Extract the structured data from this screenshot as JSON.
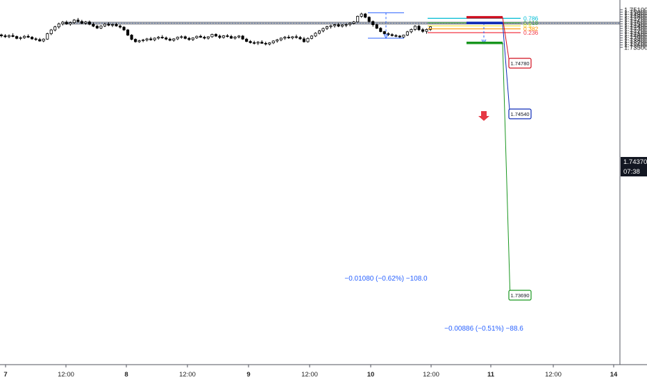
{
  "chart_data": {
    "type": "candlestick",
    "price_axis": {
      "ticks": [
        "1.75100",
        "1.75000",
        "1.74900",
        "1.74800",
        "1.74700",
        "1.74600",
        "1.74500",
        "1.74400",
        "1.74300",
        "1.74200",
        "1.74100",
        "1.74000",
        "1.73900",
        "1.73800",
        "1.73700",
        "1.73600",
        "1.73500"
      ],
      "current_price": "1.74370",
      "countdown": "07:38",
      "ylim": [
        1.7345,
        1.7515
      ]
    },
    "time_axis": {
      "ticks": [
        "7",
        "12:00",
        "8",
        "12:00",
        "9",
        "12:00",
        "10",
        "12:00",
        "11",
        "12:00",
        "14"
      ]
    },
    "candles": [
      [
        1.7403,
        1.7408,
        1.7392,
        1.7399
      ],
      [
        1.7399,
        1.7406,
        1.739,
        1.7395
      ],
      [
        1.7395,
        1.7405,
        1.7389,
        1.74
      ],
      [
        1.74,
        1.741,
        1.7393,
        1.7396
      ],
      [
        1.7396,
        1.74,
        1.7384,
        1.7388
      ],
      [
        1.7388,
        1.7396,
        1.7381,
        1.7391
      ],
      [
        1.7391,
        1.7402,
        1.7386,
        1.7397
      ],
      [
        1.7397,
        1.7405,
        1.739,
        1.7393
      ],
      [
        1.7393,
        1.7398,
        1.7382,
        1.7386
      ],
      [
        1.7386,
        1.7392,
        1.7378,
        1.7383
      ],
      [
        1.7383,
        1.739,
        1.7374,
        1.7377
      ],
      [
        1.7377,
        1.7388,
        1.7372,
        1.7385
      ],
      [
        1.7385,
        1.7412,
        1.7382,
        1.7408
      ],
      [
        1.7408,
        1.7428,
        1.7402,
        1.7424
      ],
      [
        1.7424,
        1.7442,
        1.7418,
        1.7437
      ],
      [
        1.7437,
        1.7455,
        1.743,
        1.745
      ],
      [
        1.745,
        1.7462,
        1.7443,
        1.7457
      ],
      [
        1.7457,
        1.7464,
        1.7446,
        1.7449
      ],
      [
        1.7449,
        1.746,
        1.7442,
        1.7455
      ],
      [
        1.7455,
        1.747,
        1.745,
        1.7466
      ],
      [
        1.7466,
        1.7475,
        1.7455,
        1.746
      ],
      [
        1.746,
        1.7467,
        1.7448,
        1.7453
      ],
      [
        1.7453,
        1.7462,
        1.7446,
        1.7458
      ],
      [
        1.7458,
        1.7464,
        1.7444,
        1.7448
      ],
      [
        1.7448,
        1.7455,
        1.7436,
        1.744
      ],
      [
        1.744,
        1.7446,
        1.7428,
        1.7432
      ],
      [
        1.7432,
        1.7444,
        1.7428,
        1.7441
      ],
      [
        1.7441,
        1.7453,
        1.7436,
        1.7449
      ],
      [
        1.7449,
        1.7456,
        1.744,
        1.7444
      ],
      [
        1.7444,
        1.7452,
        1.7436,
        1.7447
      ],
      [
        1.7447,
        1.7454,
        1.7438,
        1.7441
      ],
      [
        1.7441,
        1.7447,
        1.743,
        1.7436
      ],
      [
        1.7436,
        1.744,
        1.742,
        1.7424
      ],
      [
        1.7424,
        1.7428,
        1.7398,
        1.7402
      ],
      [
        1.7402,
        1.7406,
        1.738,
        1.7384
      ],
      [
        1.7384,
        1.7388,
        1.737,
        1.7374
      ],
      [
        1.7374,
        1.7382,
        1.7369,
        1.7378
      ],
      [
        1.7378,
        1.7386,
        1.7372,
        1.7381
      ],
      [
        1.7381,
        1.739,
        1.7375,
        1.7386
      ],
      [
        1.7386,
        1.7394,
        1.7378,
        1.7382
      ],
      [
        1.7382,
        1.7392,
        1.7376,
        1.7389
      ],
      [
        1.7389,
        1.7398,
        1.7383,
        1.7393
      ],
      [
        1.7393,
        1.7402,
        1.7386,
        1.739
      ],
      [
        1.739,
        1.7396,
        1.738,
        1.7385
      ],
      [
        1.7385,
        1.7391,
        1.7376,
        1.738
      ],
      [
        1.738,
        1.7389,
        1.7374,
        1.7386
      ],
      [
        1.7386,
        1.7396,
        1.7381,
        1.7393
      ],
      [
        1.7393,
        1.7401,
        1.7387,
        1.7395
      ],
      [
        1.7395,
        1.74,
        1.7384,
        1.7388
      ],
      [
        1.7388,
        1.7394,
        1.7378,
        1.7383
      ],
      [
        1.7383,
        1.7392,
        1.7377,
        1.739
      ],
      [
        1.739,
        1.74,
        1.7386,
        1.7397
      ],
      [
        1.7397,
        1.7404,
        1.739,
        1.7393
      ],
      [
        1.7393,
        1.7399,
        1.7384,
        1.7389
      ],
      [
        1.7389,
        1.7397,
        1.7383,
        1.7395
      ],
      [
        1.7395,
        1.7408,
        1.7391,
        1.7405
      ],
      [
        1.7405,
        1.741,
        1.7394,
        1.7398
      ],
      [
        1.7398,
        1.7404,
        1.7386,
        1.7392
      ],
      [
        1.7392,
        1.7402,
        1.7387,
        1.7399
      ],
      [
        1.7399,
        1.7406,
        1.7392,
        1.7396
      ],
      [
        1.7396,
        1.7403,
        1.7386,
        1.7389
      ],
      [
        1.7389,
        1.7398,
        1.7383,
        1.7394
      ],
      [
        1.7394,
        1.7402,
        1.7388,
        1.7398
      ],
      [
        1.7398,
        1.7402,
        1.7382,
        1.7385
      ],
      [
        1.7385,
        1.739,
        1.7372,
        1.7375
      ],
      [
        1.7375,
        1.7381,
        1.7366,
        1.737
      ],
      [
        1.737,
        1.7378,
        1.7362,
        1.7368
      ],
      [
        1.7368,
        1.7376,
        1.736,
        1.7372
      ],
      [
        1.7372,
        1.738,
        1.7366,
        1.7367
      ],
      [
        1.7367,
        1.7374,
        1.7358,
        1.7364
      ],
      [
        1.7364,
        1.7372,
        1.7358,
        1.7369
      ],
      [
        1.7369,
        1.738,
        1.7364,
        1.7377
      ],
      [
        1.7377,
        1.7386,
        1.737,
        1.7382
      ],
      [
        1.7382,
        1.7392,
        1.7376,
        1.7389
      ],
      [
        1.7389,
        1.7398,
        1.7382,
        1.7393
      ],
      [
        1.7393,
        1.7402,
        1.7386,
        1.739
      ],
      [
        1.739,
        1.7398,
        1.7384,
        1.7395
      ],
      [
        1.7395,
        1.7404,
        1.7387,
        1.7392
      ],
      [
        1.7392,
        1.7398,
        1.7382,
        1.7386
      ],
      [
        1.7386,
        1.7394,
        1.737,
        1.7374
      ],
      [
        1.7374,
        1.7392,
        1.737,
        1.7388
      ],
      [
        1.7388,
        1.7402,
        1.7384,
        1.7398
      ],
      [
        1.7398,
        1.7414,
        1.7394,
        1.741
      ],
      [
        1.741,
        1.7424,
        1.7405,
        1.742
      ],
      [
        1.742,
        1.7434,
        1.7414,
        1.743
      ],
      [
        1.743,
        1.7442,
        1.7424,
        1.7438
      ],
      [
        1.7438,
        1.7446,
        1.743,
        1.7442
      ],
      [
        1.7442,
        1.745,
        1.7434,
        1.7446
      ],
      [
        1.7446,
        1.7453,
        1.7436,
        1.744
      ],
      [
        1.744,
        1.7448,
        1.7434,
        1.7445
      ],
      [
        1.7445,
        1.7452,
        1.7436,
        1.7447
      ],
      [
        1.7447,
        1.7456,
        1.744,
        1.7452
      ],
      [
        1.7452,
        1.7462,
        1.7447,
        1.7458
      ],
      [
        1.7458,
        1.7485,
        1.7455,
        1.7482
      ],
      [
        1.7482,
        1.7497,
        1.7476,
        1.7492
      ],
      [
        1.7492,
        1.7496,
        1.7474,
        1.7478
      ],
      [
        1.7478,
        1.7482,
        1.7455,
        1.746
      ],
      [
        1.746,
        1.7464,
        1.7438,
        1.7446
      ],
      [
        1.7446,
        1.7451,
        1.7428,
        1.7431
      ],
      [
        1.7431,
        1.7436,
        1.7414,
        1.7417
      ],
      [
        1.7417,
        1.742,
        1.7404,
        1.7408
      ],
      [
        1.7408,
        1.7414,
        1.7398,
        1.7404
      ],
      [
        1.7404,
        1.741,
        1.7396,
        1.74
      ],
      [
        1.74,
        1.7406,
        1.7393,
        1.7398
      ],
      [
        1.7398,
        1.7402,
        1.739,
        1.7394
      ],
      [
        1.7394,
        1.7404,
        1.7389,
        1.7402
      ],
      [
        1.7402,
        1.742,
        1.7398,
        1.7416
      ],
      [
        1.7416,
        1.743,
        1.741,
        1.7426
      ],
      [
        1.7426,
        1.7444,
        1.742,
        1.744
      ],
      [
        1.744,
        1.7446,
        1.742,
        1.7425
      ],
      [
        1.7425,
        1.7432,
        1.7412,
        1.7418
      ],
      [
        1.7418,
        1.743,
        1.7408,
        1.7426
      ],
      [
        1.7426,
        1.744,
        1.742,
        1.7437
      ]
    ],
    "horizontal_lines": [
      1.74564,
      1.74532,
      1.74498
    ],
    "fibonacci": {
      "levels": [
        {
          "label": "0.786",
          "value": 1.74735,
          "color": "#00bcd4"
        },
        {
          "label": "0.618",
          "value": 1.74545,
          "color": "#4caf50"
        },
        {
          "label": "0.5",
          "value": 1.74415,
          "color": "#f0e030"
        },
        {
          "label": "0.382",
          "value": 1.74285,
          "color": "#ff9800"
        },
        {
          "label": "0.236",
          "value": 1.74125,
          "color": "#f23645"
        }
      ]
    },
    "price_badges": [
      {
        "label": "1.74780",
        "value": 1.7478,
        "color": "#d10f1f"
      },
      {
        "label": "1.74540",
        "value": 1.7454,
        "color": "#0c2ab8"
      },
      {
        "label": "1.73690",
        "value": 1.7369,
        "color": "#18961e"
      }
    ],
    "measurements": [
      {
        "label": "−0.01080 (−0.62%) −108.0",
        "from": 1.7497,
        "to": 1.7389
      },
      {
        "label": "−0.00886 (−0.51%) −88.6",
        "from": 1.7454,
        "to": 1.73654
      }
    ]
  }
}
